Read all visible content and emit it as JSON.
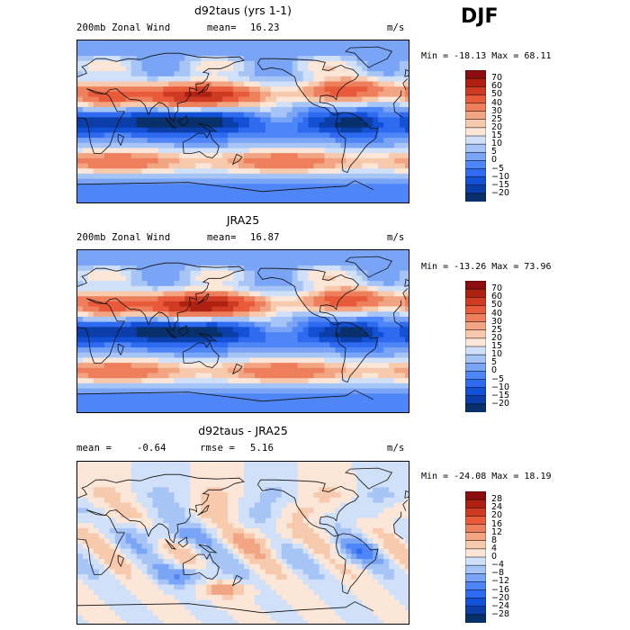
{
  "season": "DJF",
  "panels": [
    {
      "title": "d92taus (yrs 1-1)",
      "left_label": "200mb Zonal Wind",
      "mean_label": "mean=",
      "mean_value": "16.23",
      "units": "m/s",
      "min_max": "Min = -18.13 Max =  68.11",
      "colorbar": [
        "70",
        "60",
        "50",
        "40",
        "30",
        "25",
        "20",
        "15",
        "10",
        "5",
        "0",
        "−5",
        "−10",
        "−15",
        "−20"
      ],
      "palette": "wind"
    },
    {
      "title": "JRA25",
      "left_label": "200mb Zonal Wind",
      "mean_label": "mean=",
      "mean_value": "16.87",
      "units": "m/s",
      "min_max": "Min = -13.26 Max =  73.96",
      "colorbar": [
        "70",
        "60",
        "50",
        "40",
        "30",
        "25",
        "20",
        "15",
        "10",
        "5",
        "0",
        "−5",
        "−10",
        "−15",
        "−20"
      ],
      "palette": "wind"
    },
    {
      "title": "d92taus - JRA25",
      "left_label": "mean =",
      "mean_label": "",
      "mean_value": "-0.64",
      "rmse_label": "rmse =",
      "rmse_value": "5.16",
      "units": "m/s",
      "min_max": "Min = -24.08 Max =  18.19",
      "colorbar": [
        "28",
        "24",
        "20",
        "16",
        "12",
        "8",
        "4",
        "0",
        "−4",
        "−8",
        "−12",
        "−16",
        "−20",
        "−24",
        "−28"
      ],
      "palette": "diff"
    }
  ],
  "chart_data": [
    {
      "type": "heatmap",
      "title": "d92taus (yrs 1-1)",
      "variable": "200mb Zonal Wind",
      "units": "m/s",
      "mean": 16.23,
      "min": -18.13,
      "max": 68.11,
      "contour_levels": [
        -20,
        -15,
        -10,
        -5,
        0,
        5,
        10,
        15,
        20,
        25,
        30,
        40,
        50,
        60,
        70
      ],
      "colors": [
        "#08306b",
        "#0b3ea8",
        "#1250d6",
        "#2e6bf0",
        "#4f86f7",
        "#7aa4f5",
        "#a6c4f5",
        "#d0e0f8",
        "#fbe6d8",
        "#f7c9ad",
        "#f2a583",
        "#ee7f5c",
        "#e85a3a",
        "#cf3a22",
        "#ad2012",
        "#8b0d0d"
      ],
      "features": [
        "subtropical jet ~30N core >60 m/s over East Asia",
        "SH jet ~40-50S",
        "tropical easterlies over maritime continent and South America"
      ]
    },
    {
      "type": "heatmap",
      "title": "JRA25",
      "variable": "200mb Zonal Wind",
      "units": "m/s",
      "mean": 16.87,
      "min": -13.26,
      "max": 73.96,
      "contour_levels": [
        -20,
        -15,
        -10,
        -5,
        0,
        5,
        10,
        15,
        20,
        25,
        30,
        40,
        50,
        60,
        70
      ],
      "colors": [
        "#08306b",
        "#0b3ea8",
        "#1250d6",
        "#2e6bf0",
        "#4f86f7",
        "#7aa4f5",
        "#a6c4f5",
        "#d0e0f8",
        "#fbe6d8",
        "#f7c9ad",
        "#f2a583",
        "#ee7f5c",
        "#e85a3a",
        "#cf3a22",
        "#ad2012",
        "#8b0d0d"
      ],
      "features": [
        "subtropical jet core >70 m/s east of Japan",
        "SH jet ~45S",
        "tropical easterlies over maritime continent"
      ]
    },
    {
      "type": "heatmap",
      "title": "d92taus - JRA25",
      "units": "m/s",
      "mean": -0.64,
      "rmse": 5.16,
      "min": -24.08,
      "max": 18.19,
      "contour_levels": [
        -28,
        -24,
        -20,
        -16,
        -12,
        -8,
        -4,
        0,
        4,
        8,
        12,
        16,
        20,
        24,
        28
      ],
      "colors": [
        "#08306b",
        "#0b3ea8",
        "#1250d6",
        "#2e6bf0",
        "#4f86f7",
        "#7aa4f5",
        "#a6c4f5",
        "#d0e0f8",
        "#fbe6d8",
        "#f7c9ad",
        "#f2a583",
        "#ee7f5c",
        "#e85a3a",
        "#cf3a22",
        "#ad2012",
        "#8b0d0d"
      ]
    }
  ]
}
